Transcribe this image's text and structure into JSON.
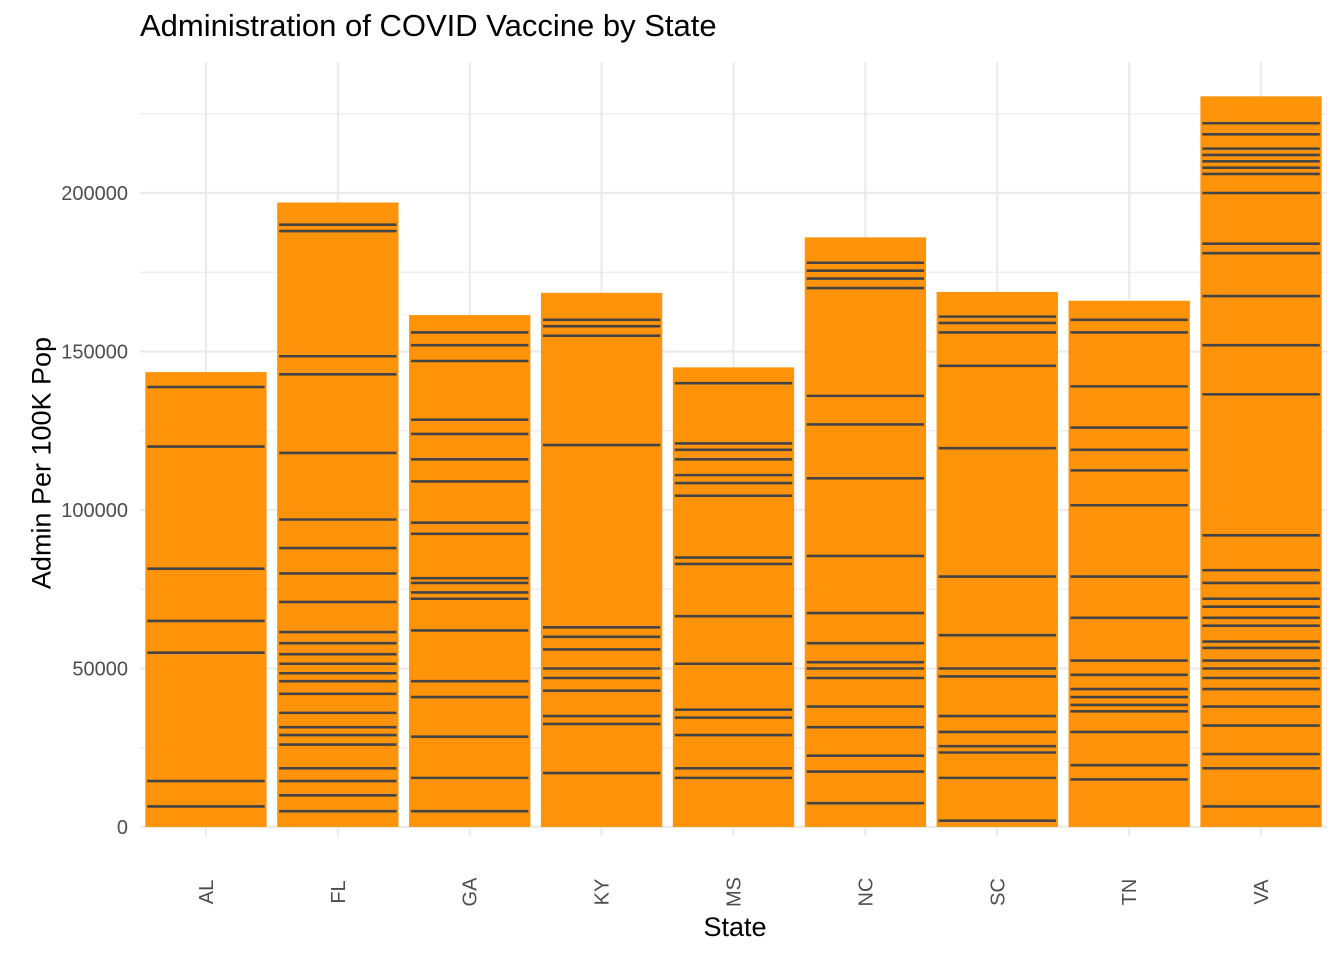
{
  "chart_data": {
    "type": "bar",
    "title": "Administration of COVID Vaccine by State",
    "xlabel": "State",
    "ylabel": "Admin Per 100K Pop",
    "categories": [
      "AL",
      "FL",
      "GA",
      "KY",
      "MS",
      "NC",
      "SC",
      "TN",
      "VA"
    ],
    "values": [
      143500,
      197000,
      161500,
      168500,
      145000,
      186000,
      168800,
      166000,
      230500
    ],
    "ylim": [
      0,
      235000
    ],
    "y_ticks": [
      0,
      50000,
      100000,
      150000,
      200000
    ],
    "y_tick_labels": [
      "0",
      "50000",
      "100000",
      "150000",
      "200000"
    ],
    "stacked_segment_boundaries": {
      "AL": [
        6500,
        14500,
        55000,
        65000,
        81500,
        120000,
        138800
      ],
      "FL": [
        5000,
        10000,
        14500,
        18500,
        26000,
        29000,
        31500,
        36000,
        42000,
        46000,
        48500,
        51500,
        54500,
        58000,
        61500,
        71000,
        80000,
        88000,
        97000,
        118000,
        142800,
        148500,
        188000,
        190000
      ],
      "GA": [
        5000,
        15500,
        28500,
        41000,
        46000,
        62000,
        72000,
        74000,
        77000,
        78500,
        92500,
        96000,
        109000,
        116000,
        124000,
        128500,
        147000,
        152000,
        156000
      ],
      "KY": [
        17000,
        32500,
        35000,
        43000,
        47000,
        50000,
        56000,
        60000,
        63000,
        120500,
        155000,
        158000,
        160000
      ],
      "MS": [
        15500,
        18500,
        29000,
        34500,
        37000,
        51500,
        66500,
        83000,
        85000,
        104500,
        108500,
        111000,
        116000,
        119000,
        121000,
        140000
      ],
      "NC": [
        7500,
        17500,
        22500,
        31500,
        38000,
        47000,
        50000,
        52000,
        58000,
        67500,
        85500,
        110000,
        127000,
        136000,
        170000,
        173000,
        175500,
        178000
      ],
      "SC": [
        2000,
        15500,
        23500,
        25500,
        30000,
        35000,
        47500,
        50000,
        60500,
        79000,
        119500,
        145500,
        156000,
        159000,
        161000
      ],
      "TN": [
        15000,
        19500,
        30000,
        36500,
        38500,
        41000,
        43500,
        48000,
        52500,
        66000,
        79000,
        101500,
        112500,
        119000,
        126000,
        139000,
        156000,
        160000
      ],
      "VA": [
        6500,
        18500,
        23000,
        32000,
        38000,
        43500,
        47000,
        50000,
        52500,
        56500,
        58500,
        63500,
        66000,
        69500,
        72000,
        77000,
        81000,
        92000,
        136500,
        152000,
        167500,
        181000,
        184000,
        200000,
        206000,
        208000,
        210000,
        212000,
        214000,
        218500,
        222000
      ]
    },
    "colors": {
      "bar_fill": "#FF940A",
      "segment_line": "#444444",
      "grid": "#EBEBEB",
      "tick_text": "#4D4D4D"
    },
    "grid": true,
    "legend": "none"
  }
}
